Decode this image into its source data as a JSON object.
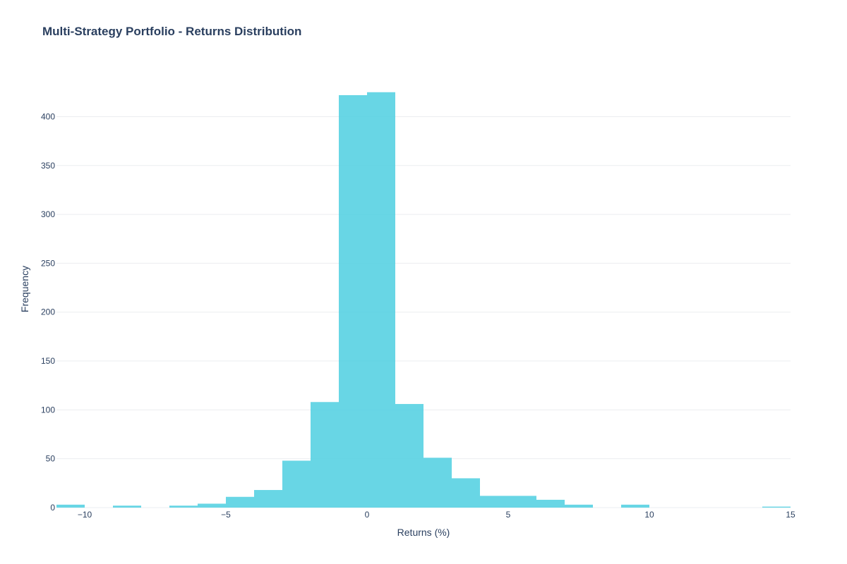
{
  "chart_data": {
    "type": "bar",
    "title": "Multi-Strategy Portfolio - Returns Distribution",
    "xlabel": "Returns (%)",
    "ylabel": "Frequency",
    "xlim": [
      -11,
      15
    ],
    "ylim": [
      0,
      440
    ],
    "bin_width": 1,
    "x_ticks": [
      -10,
      -5,
      0,
      5,
      10,
      15
    ],
    "x_tick_labels": [
      "−10",
      "−5",
      "0",
      "5",
      "10",
      "15"
    ],
    "y_ticks": [
      0,
      50,
      100,
      150,
      200,
      250,
      300,
      350,
      400
    ],
    "y_tick_labels": [
      "0",
      "50",
      "100",
      "150",
      "200",
      "250",
      "300",
      "350",
      "400"
    ],
    "grid": true,
    "bins": [
      {
        "start": -11,
        "end": -10,
        "count": 3
      },
      {
        "start": -10,
        "end": -9,
        "count": 0
      },
      {
        "start": -9,
        "end": -8,
        "count": 2
      },
      {
        "start": -8,
        "end": -7,
        "count": 0
      },
      {
        "start": -7,
        "end": -6,
        "count": 2
      },
      {
        "start": -6,
        "end": -5,
        "count": 4
      },
      {
        "start": -5,
        "end": -4,
        "count": 11
      },
      {
        "start": -4,
        "end": -3,
        "count": 18
      },
      {
        "start": -3,
        "end": -2,
        "count": 48
      },
      {
        "start": -2,
        "end": -1,
        "count": 108
      },
      {
        "start": -1,
        "end": 0,
        "count": 422
      },
      {
        "start": 0,
        "end": 1,
        "count": 425
      },
      {
        "start": 1,
        "end": 2,
        "count": 106
      },
      {
        "start": 2,
        "end": 3,
        "count": 51
      },
      {
        "start": 3,
        "end": 4,
        "count": 30
      },
      {
        "start": 4,
        "end": 5,
        "count": 12
      },
      {
        "start": 5,
        "end": 6,
        "count": 12
      },
      {
        "start": 6,
        "end": 7,
        "count": 8
      },
      {
        "start": 7,
        "end": 8,
        "count": 3
      },
      {
        "start": 8,
        "end": 9,
        "count": 0
      },
      {
        "start": 9,
        "end": 10,
        "count": 3
      },
      {
        "start": 10,
        "end": 11,
        "count": 0
      },
      {
        "start": 11,
        "end": 12,
        "count": 0
      },
      {
        "start": 12,
        "end": 13,
        "count": 0
      },
      {
        "start": 13,
        "end": 14,
        "count": 0
      },
      {
        "start": 14,
        "end": 15,
        "count": 1
      }
    ],
    "colors": {
      "bar": "#4ecfe0",
      "text": "#2a3f5f",
      "grid": "#ebedf0",
      "baseline": "#ebedf0"
    }
  }
}
